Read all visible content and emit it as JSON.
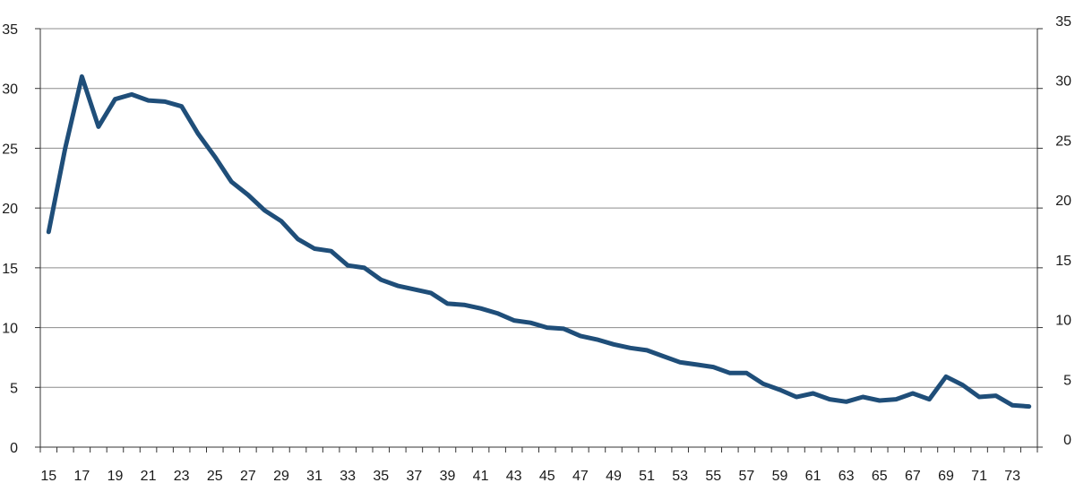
{
  "chart_data": {
    "type": "line",
    "title": "",
    "xlabel": "",
    "ylabel": "",
    "x_range": [
      15,
      74
    ],
    "ylim": [
      0,
      35
    ],
    "y_ticks": [
      0,
      5,
      10,
      15,
      20,
      25,
      30,
      35
    ],
    "x_tick_labels": [
      "15",
      "17",
      "19",
      "21",
      "23",
      "25",
      "27",
      "29",
      "31",
      "33",
      "35",
      "37",
      "39",
      "41",
      "43",
      "45",
      "47",
      "49",
      "51",
      "53",
      "55",
      "57",
      "59",
      "61",
      "63",
      "65",
      "67",
      "69",
      "71",
      "73"
    ],
    "grid": true,
    "secondary_y_axis": true,
    "line_color": "#1f4e79",
    "series": [
      {
        "x": [
          15,
          16,
          17,
          18,
          19,
          20,
          21,
          22,
          23,
          24,
          25,
          26,
          27,
          28,
          29,
          30,
          31,
          32,
          33,
          34,
          35,
          36,
          37,
          38,
          39,
          40,
          41,
          42,
          43,
          44,
          45,
          46,
          47,
          48,
          49,
          50,
          51,
          52,
          53,
          54,
          55,
          56,
          57,
          58,
          59,
          60,
          61,
          62,
          63,
          64,
          65,
          66,
          67,
          68,
          69,
          70,
          71,
          72,
          73,
          74
        ],
        "values": [
          18.0,
          25.0,
          31.0,
          26.8,
          29.1,
          29.5,
          29.0,
          28.9,
          28.5,
          26.2,
          24.3,
          22.2,
          21.1,
          19.8,
          18.9,
          17.4,
          16.6,
          16.4,
          15.2,
          15.0,
          14.0,
          13.5,
          13.2,
          12.9,
          12.0,
          11.9,
          11.6,
          11.2,
          10.6,
          10.4,
          10.0,
          9.9,
          9.3,
          9.0,
          8.6,
          8.3,
          8.1,
          7.6,
          7.1,
          6.9,
          6.7,
          6.2,
          6.2,
          5.3,
          4.8,
          4.2,
          4.5,
          4.0,
          3.8,
          4.2,
          3.9,
          4.0,
          4.5,
          4.0,
          5.9,
          5.2,
          4.2,
          4.3,
          3.5,
          3.4
        ]
      }
    ]
  }
}
